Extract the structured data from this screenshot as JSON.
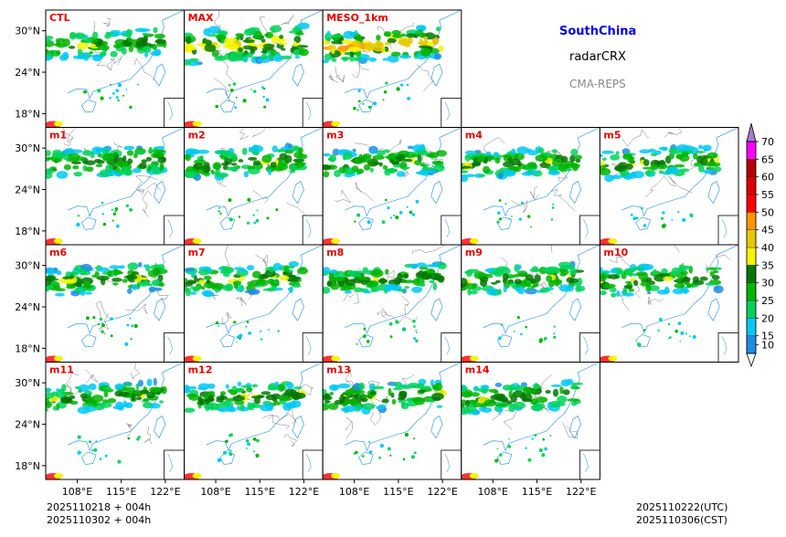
{
  "chart_data": {
    "type": "panel-grid",
    "description_title": "SouthChina",
    "variable": "radarCRX",
    "model": "CMA-REPS",
    "panels": [
      {
        "label": "CTL",
        "coverage": 0.62,
        "intensity": 0.55
      },
      {
        "label": "MAX",
        "coverage": 0.8,
        "intensity": 0.8
      },
      {
        "label": "MESO_1km",
        "coverage": 0.72,
        "intensity": 0.95
      },
      {
        "label": "m1",
        "coverage": 0.64,
        "intensity": 0.6
      },
      {
        "label": "m2",
        "coverage": 0.66,
        "intensity": 0.62
      },
      {
        "label": "m3",
        "coverage": 0.64,
        "intensity": 0.6
      },
      {
        "label": "m4",
        "coverage": 0.63,
        "intensity": 0.6
      },
      {
        "label": "m5",
        "coverage": 0.65,
        "intensity": 0.62
      },
      {
        "label": "m6",
        "coverage": 0.63,
        "intensity": 0.6
      },
      {
        "label": "m7",
        "coverage": 0.65,
        "intensity": 0.62
      },
      {
        "label": "m8",
        "coverage": 0.64,
        "intensity": 0.6
      },
      {
        "label": "m9",
        "coverage": 0.63,
        "intensity": 0.6
      },
      {
        "label": "m10",
        "coverage": 0.65,
        "intensity": 0.62
      },
      {
        "label": "m11",
        "coverage": 0.62,
        "intensity": 0.58
      },
      {
        "label": "m12",
        "coverage": 0.64,
        "intensity": 0.62
      },
      {
        "label": "m13",
        "coverage": 0.63,
        "intensity": 0.6
      },
      {
        "label": "m14",
        "coverage": 0.64,
        "intensity": 0.62
      }
    ],
    "rows": [
      [
        "CTL",
        "MAX",
        "MESO_1km"
      ],
      [
        "m1",
        "m2",
        "m3",
        "m4",
        "m5"
      ],
      [
        "m6",
        "m7",
        "m8",
        "m9",
        "m10"
      ],
      [
        "m11",
        "m12",
        "m13",
        "m14"
      ]
    ],
    "lat_ticks": [
      "30°N",
      "24°N",
      "18°N"
    ],
    "lat_values": [
      30,
      24,
      18
    ],
    "lon_ticks": [
      "108°E",
      "115°E",
      "122°E"
    ],
    "lon_values": [
      108,
      115,
      122
    ],
    "lon_range": [
      103,
      125
    ],
    "lat_range": [
      16,
      33
    ],
    "colorbar": {
      "levels": [
        10,
        15,
        20,
        25,
        30,
        35,
        40,
        45,
        50,
        55,
        60,
        65,
        70
      ],
      "colors": [
        "#1e8ce6",
        "#00c8f5",
        "#00d25a",
        "#00b400",
        "#007800",
        "#f5f500",
        "#e6c800",
        "#ff9600",
        "#ff0000",
        "#dc0000",
        "#b40000",
        "#ff00ff",
        "#9632d2",
        "#a67ad6"
      ],
      "extend": "both"
    },
    "init_times": [
      "2025110218  +  004h",
      "2025110302  +  004h"
    ],
    "valid_times": [
      "2025110222(UTC)",
      "2025110306(CST)"
    ]
  },
  "colors": {
    "panel_label": "#e60000",
    "region_title": "#0000e6",
    "model_label": "#888888"
  }
}
